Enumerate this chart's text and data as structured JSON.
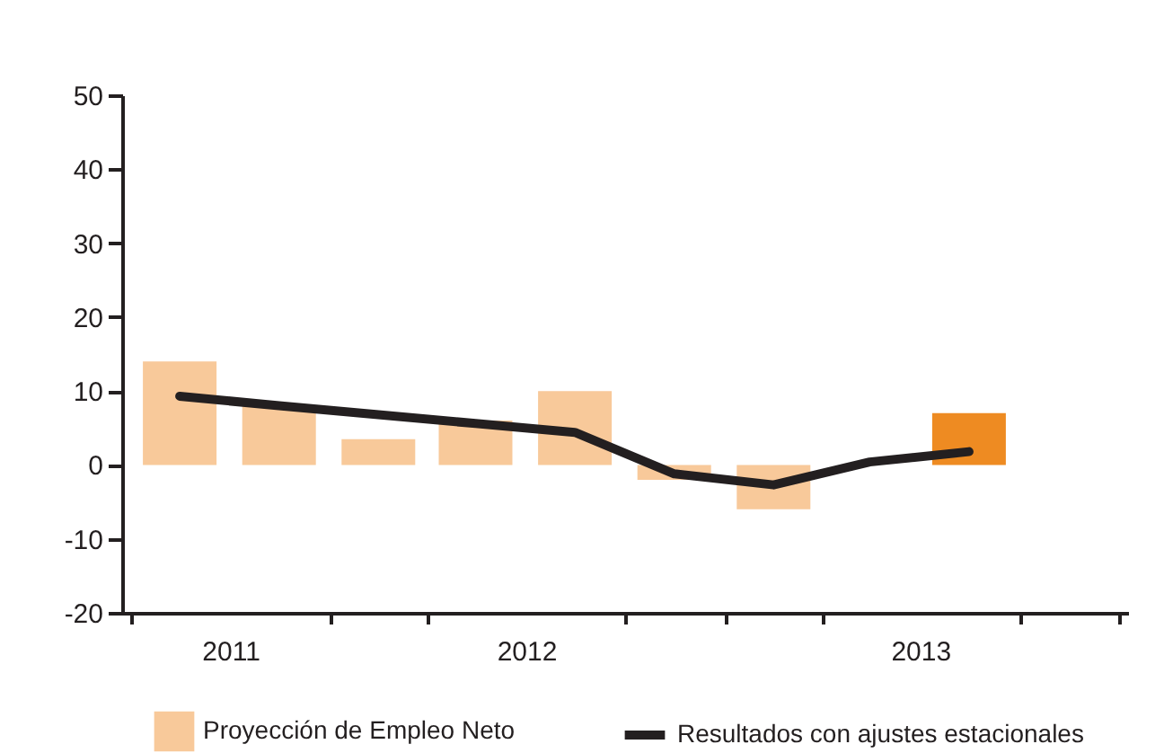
{
  "chart_data": {
    "type": "bar",
    "xlim": [
      "2011-07-01",
      "2014-01-01"
    ],
    "xticks": [
      {
        "value": "2011-07-01",
        "label": null
      },
      {
        "value": "2011-10-01",
        "label": "2011"
      },
      {
        "value": "2012-01-01",
        "label": null
      },
      {
        "value": "2012-04-01",
        "label": null
      },
      {
        "value": "2012-07-01",
        "label": "2012"
      },
      {
        "value": "2012-10-01",
        "label": null
      },
      {
        "value": "2013-01-01",
        "label": null
      },
      {
        "value": "2013-04-01",
        "label": null
      },
      {
        "value": "2013-07-01",
        "label": "2013"
      },
      {
        "value": "2013-10-01",
        "label": null
      },
      {
        "value": "2014-01-01",
        "label": null
      }
    ],
    "ylim": [
      -20,
      50
    ],
    "yticks": [
      -20,
      -10,
      0,
      10,
      20,
      30,
      40,
      50
    ],
    "series": [
      {
        "name": "Proyección de Empleo Neto",
        "color": "#f8c99a",
        "x": [
          "2011-08-15",
          "2011-11-15",
          "2012-02-15",
          "2012-05-15",
          "2012-08-15",
          "2012-11-15",
          "2013-02-15",
          "2013-08-15"
        ],
        "values": [
          14,
          8,
          3.5,
          6,
          10,
          -2,
          -6,
          7
        ],
        "colors": [
          "#f8c99a",
          "#f8c99a",
          "#f8c99a",
          "#f8c99a",
          "#f8c99a",
          "#f8c99a",
          "#f8c99a",
          "#ee8b22"
        ]
      },
      {
        "name": "Resultados con ajustes estacionales",
        "type": "line",
        "color": "#231f20",
        "x": [
          "2011-08-15",
          "2011-11-15",
          "2012-02-15",
          "2012-05-15",
          "2012-08-15",
          "2012-11-15",
          "2013-02-15",
          "2013-05-15",
          "2013-08-15"
        ],
        "values": [
          9.3,
          8,
          6.8,
          5.6,
          4.4,
          -1.2,
          -2.7,
          0.4,
          1.8
        ]
      }
    ],
    "legend": "bottom"
  }
}
